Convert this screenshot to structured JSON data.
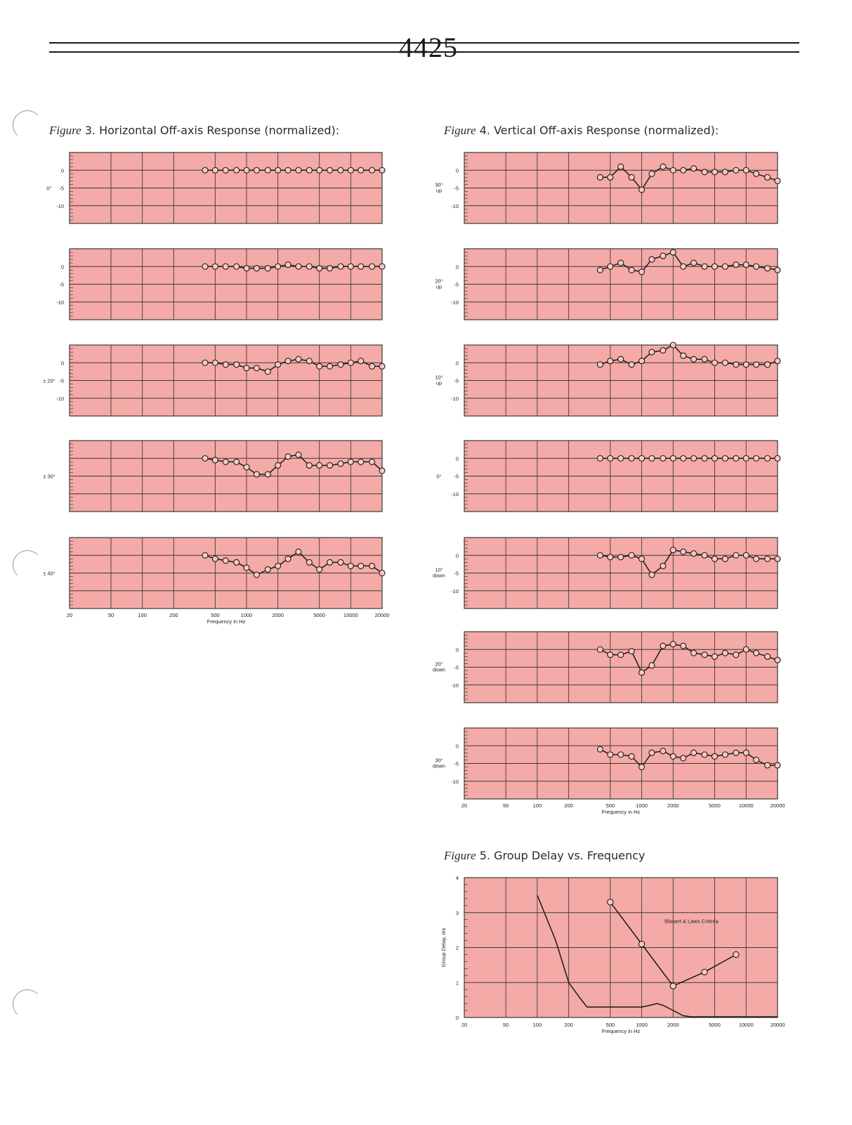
{
  "page": {
    "number": "4425",
    "figure3_title": {
      "word": "Figure",
      "rest": " 3. Horizontal Off-axis Response (normalized):"
    },
    "figure4_title": {
      "word": "Figure",
      "rest": " 4. Vertical Off-axis Response (normalized):"
    },
    "figure5_title": {
      "word": "Figure",
      "rest": "  5. Group Delay vs. Frequency"
    }
  },
  "colors": {
    "plot_bg": "#f4aaa6",
    "grid": "#3a3a3a",
    "trace": "#1a1a1a",
    "marker_fill": "#f8c8c4"
  },
  "chart_data": [
    {
      "id": "fig3",
      "type": "line",
      "scale": "log-x",
      "x_ticks": [
        20,
        50,
        100,
        200,
        500,
        1000,
        2000,
        5000,
        10000,
        20000
      ],
      "x_tick_labels": [
        "20",
        "50",
        "100",
        "200",
        "500",
        "1000",
        "2000",
        "5000",
        "10000",
        "20000"
      ],
      "xlabel": "Frequency in Hz",
      "y_ticks": [
        0,
        -5,
        -10
      ],
      "ylim": [
        -15,
        5
      ],
      "grid": true,
      "x": [
        400,
        500,
        630,
        800,
        1000,
        1250,
        1600,
        2000,
        2500,
        3150,
        4000,
        5000,
        6300,
        8000,
        10000,
        12500,
        16000,
        20000
      ],
      "panels": [
        {
          "label": "0°",
          "values": [
            0,
            0,
            0,
            0,
            0,
            0,
            0,
            0,
            0,
            0,
            0,
            0,
            0,
            0,
            0,
            0,
            0,
            0
          ]
        },
        {
          "label": "",
          "values": [
            0,
            0,
            0,
            0,
            -0.5,
            -0.5,
            -0.5,
            0,
            0.5,
            0,
            0,
            -0.5,
            -0.5,
            0,
            0,
            0,
            0,
            0
          ]
        },
        {
          "label": "± 20°",
          "values": [
            0,
            0,
            -0.5,
            -0.5,
            -1.5,
            -1.5,
            -2.5,
            -0.5,
            0.5,
            1,
            0.5,
            -1,
            -1,
            -0.5,
            0,
            0.5,
            -1,
            -1
          ]
        },
        {
          "label": "± 30°",
          "values": [
            0,
            -0.5,
            -1,
            -1,
            -2.5,
            -4.5,
            -4.5,
            -2,
            0.5,
            1,
            -2,
            -2,
            -2,
            -1.5,
            -1,
            -1,
            -1,
            -3.5
          ]
        },
        {
          "label": "± 40°",
          "values": [
            0,
            -1,
            -1.5,
            -2,
            -3.5,
            -5.5,
            -4,
            -3,
            -1,
            1,
            -2,
            -4,
            -2,
            -2,
            -3,
            -3,
            -3,
            -5
          ]
        }
      ]
    },
    {
      "id": "fig4",
      "type": "line",
      "scale": "log-x",
      "x_ticks": [
        20,
        50,
        100,
        200,
        500,
        1000,
        2000,
        5000,
        10000,
        20000
      ],
      "x_tick_labels": [
        "20",
        "50",
        "100",
        "200",
        "500",
        "1000",
        "2000",
        "5000",
        "10000",
        "20000"
      ],
      "xlabel": "Frequency in Hz",
      "y_ticks": [
        0,
        -5,
        -10
      ],
      "ylim": [
        -15,
        5
      ],
      "grid": true,
      "x": [
        400,
        500,
        630,
        800,
        1000,
        1250,
        1600,
        2000,
        2500,
        3150,
        4000,
        5000,
        6300,
        8000,
        10000,
        12500,
        16000,
        20000
      ],
      "panels": [
        {
          "label": "30°\nup",
          "values": [
            -2,
            -2,
            1,
            -2,
            -5.5,
            -1,
            1,
            0,
            0,
            0.5,
            -0.5,
            -0.5,
            -0.5,
            0,
            0,
            -1,
            -2,
            -3
          ]
        },
        {
          "label": "20°\nup",
          "values": [
            -1,
            0,
            1,
            -1,
            -1.5,
            2,
            3,
            4,
            0,
            1,
            0,
            0,
            0,
            0.5,
            0.5,
            0,
            -0.5,
            -1
          ]
        },
        {
          "label": "10°\nup",
          "values": [
            -0.5,
            0.5,
            1,
            -0.5,
            0.5,
            3,
            3.5,
            5,
            2,
            1,
            1,
            0,
            0,
            -0.5,
            -0.5,
            -0.5,
            -0.5,
            0.5
          ]
        },
        {
          "label": "0°",
          "values": [
            0,
            0,
            0,
            0,
            0,
            0,
            0,
            0,
            0,
            0,
            0,
            0,
            0,
            0,
            0,
            0,
            0,
            0
          ]
        },
        {
          "label": "10°\ndown",
          "values": [
            0,
            -0.5,
            -0.5,
            0,
            -1,
            -5.5,
            -3,
            1.5,
            1,
            0.5,
            0,
            -1,
            -1,
            0,
            0,
            -1,
            -1,
            -1
          ]
        },
        {
          "label": "20°\ndown",
          "values": [
            0,
            -1.5,
            -1.5,
            -0.5,
            -6.5,
            -4.5,
            1,
            1.5,
            1,
            -1,
            -1.5,
            -2,
            -1,
            -1.5,
            0,
            -1,
            -2,
            -3
          ]
        },
        {
          "label": "30°\ndown",
          "values": [
            -1,
            -2.5,
            -2.5,
            -3,
            -6,
            -2,
            -1.5,
            -3,
            -3.5,
            -2,
            -2.5,
            -3,
            -2.5,
            -2,
            -2,
            -4,
            -5.5,
            -5.5
          ]
        }
      ]
    },
    {
      "id": "fig5",
      "type": "line",
      "scale": "log-x",
      "x_ticks": [
        20,
        50,
        100,
        200,
        500,
        1000,
        2000,
        5000,
        10000,
        20000
      ],
      "x_tick_labels": [
        "20",
        "50",
        "100",
        "200",
        "500",
        "1000",
        "2000",
        "5000",
        "10000",
        "20000"
      ],
      "xlabel": "Frequency in Hz",
      "ylabel": "Group Delay, ms",
      "y_ticks": [
        0,
        1,
        2,
        3,
        4
      ],
      "y_tick_labels": [
        "0",
        "1",
        "2",
        "3",
        "4"
      ],
      "ylim": [
        0,
        4
      ],
      "grid": true,
      "annotation": "Blauert & Laws Criteria",
      "series": [
        {
          "name": "Blauert & Laws Criteria",
          "markers": true,
          "x": [
            500,
            1000,
            2000,
            4000,
            8000
          ],
          "values": [
            3.3,
            2.1,
            0.9,
            1.3,
            1.8
          ]
        },
        {
          "markers": false,
          "x": [
            100,
            150,
            200,
            250,
            300,
            400,
            600,
            800,
            1000,
            1200,
            1400,
            1600,
            2000,
            2500,
            3000,
            4000,
            8000,
            20000
          ],
          "values": [
            3.5,
            2.2,
            1.0,
            0.6,
            0.3,
            0.3,
            0.3,
            0.3,
            0.3,
            0.35,
            0.4,
            0.35,
            0.2,
            0.05,
            0.02,
            0.02,
            0.02,
            0.02
          ]
        }
      ]
    }
  ]
}
